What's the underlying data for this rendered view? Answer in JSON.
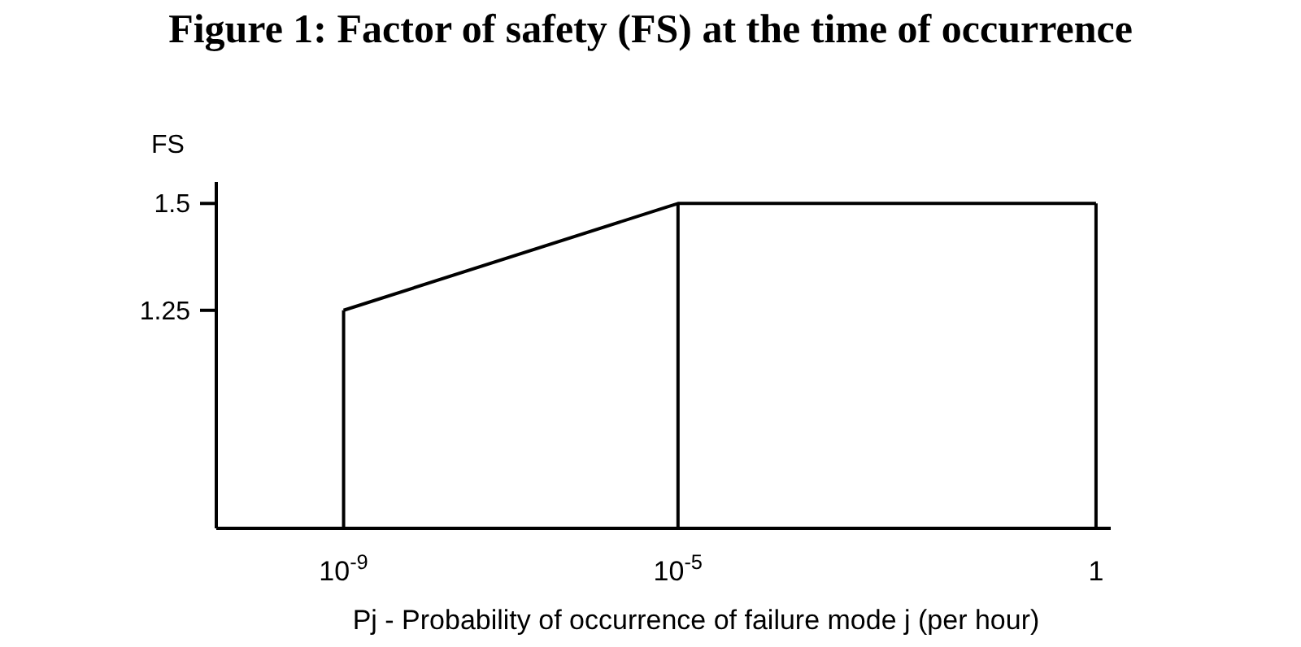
{
  "chart_data": {
    "type": "line",
    "title": "Figure 1: Factor of safety (FS) at the time of occurrence",
    "xlabel": "Pj - Probability of occurrence of failure mode j (per hour)",
    "ylabel": "FS",
    "x": [
      1e-09,
      1e-05,
      1
    ],
    "series": [
      {
        "color": "#000000",
        "values": [
          1.25,
          1.5,
          1.5
        ]
      }
    ],
    "log": "x",
    "xlim": [
      3e-11,
      1.5
    ],
    "xticks": [
      {
        "value": 1e-09,
        "label": "10$^{-9}$"
      },
      {
        "value": 1e-05,
        "label": "10$^{-5}$"
      },
      1
    ],
    "ylim": [
      0.74,
      1.55
    ],
    "yticks": [
      1.25,
      1.5
    ],
    "ref_lines": [
      {
        "axis": "x",
        "value": 1e-09,
        "color": "#000000"
      },
      {
        "axis": "x",
        "value": 1e-05,
        "color": "#000000"
      },
      {
        "axis": "x",
        "value": 1,
        "color": "#000000"
      }
    ],
    "grid": false,
    "marker": "none",
    "line_style": "solid"
  }
}
